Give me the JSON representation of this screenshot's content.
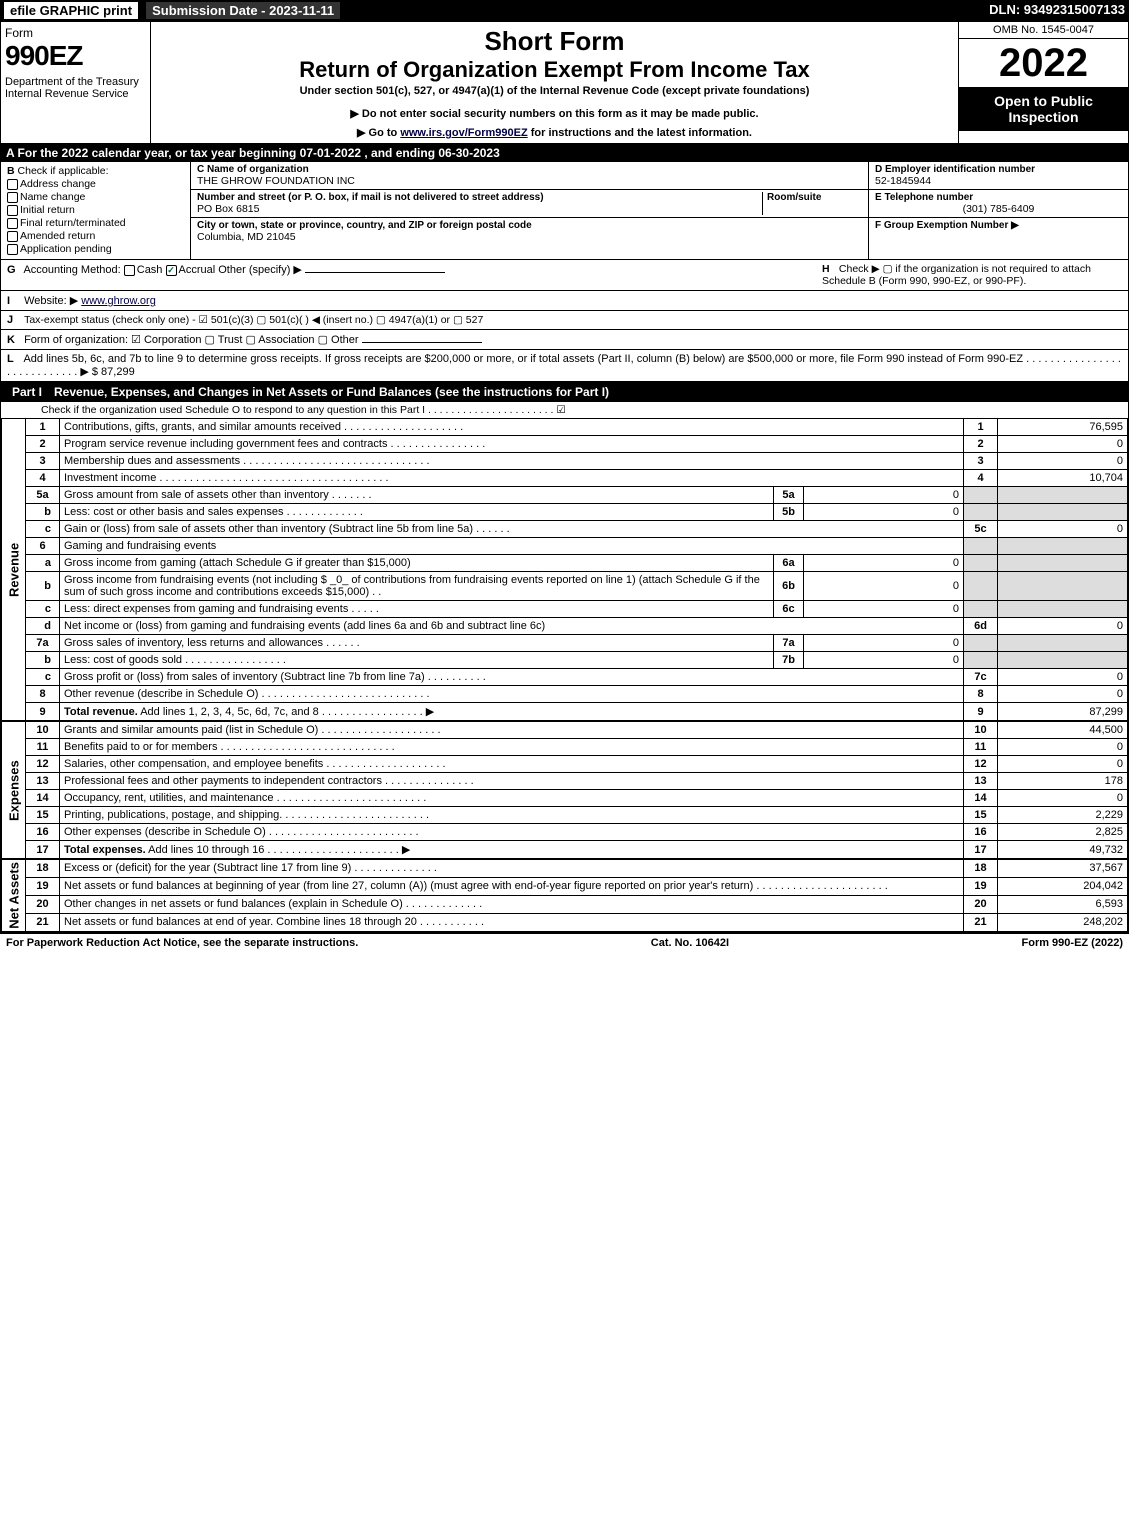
{
  "topbar": {
    "efile": "efile GRAPHIC print",
    "subdate": "Submission Date - 2023-11-11",
    "dln": "DLN: 93492315007133"
  },
  "header": {
    "form_word": "Form",
    "form_num": "990EZ",
    "dept": "Department of the Treasury\nInternal Revenue Service",
    "short": "Short Form",
    "title": "Return of Organization Exempt From Income Tax",
    "sub": "Under section 501(c), 527, or 4947(a)(1) of the Internal Revenue Code (except private foundations)",
    "note": "▶ Do not enter social security numbers on this form as it may be made public.",
    "note2": "▶ Go to www.irs.gov/Form990EZ for instructions and the latest information.",
    "omb": "OMB No. 1545-0047",
    "year": "2022",
    "open": "Open to Public Inspection"
  },
  "rowA": "A  For the 2022 calendar year, or tax year beginning 07-01-2022 , and ending 06-30-2023",
  "colB": {
    "hd_letter": "B",
    "hd": "Check if applicable:",
    "items": [
      "Address change",
      "Name change",
      "Initial return",
      "Final return/terminated",
      "Amended return",
      "Application pending"
    ]
  },
  "colC": {
    "name_lbl": "C Name of organization",
    "name": "THE GHROW FOUNDATION INC",
    "street_lbl": "Number and street (or P. O. box, if mail is not delivered to street address)",
    "room_lbl": "Room/suite",
    "street": "PO Box 6815",
    "city_lbl": "City or town, state or province, country, and ZIP or foreign postal code",
    "city": "Columbia, MD  21045"
  },
  "colDE": {
    "d_lbl": "D Employer identification number",
    "d_val": "52-1845944",
    "e_lbl": "E Telephone number",
    "e_val": "(301) 785-6409",
    "f_lbl": "F Group Exemption Number  ▶"
  },
  "lineG": {
    "ltr": "G",
    "text": "Accounting Method:",
    "cash": "Cash",
    "accrual": "Accrual",
    "other": "Other (specify) ▶"
  },
  "lineH": {
    "ltr": "H",
    "text": "Check ▶ ▢ if the organization is not required to attach Schedule B (Form 990, 990-EZ, or 990-PF)."
  },
  "lineI": {
    "ltr": "I",
    "text": "Website: ▶",
    "url": "www.ghrow.org"
  },
  "lineJ": {
    "ltr": "J",
    "text": "Tax-exempt status (check only one) - ☑ 501(c)(3) ▢ 501(c)(  ) ◀ (insert no.) ▢ 4947(a)(1) or ▢ 527"
  },
  "lineK": {
    "ltr": "K",
    "text": "Form of organization: ☑ Corporation  ▢ Trust  ▢ Association  ▢ Other"
  },
  "lineL": {
    "ltr": "L",
    "text": "Add lines 5b, 6c, and 7b to line 9 to determine gross receipts. If gross receipts are $200,000 or more, or if total assets (Part II, column (B) below) are $500,000 or more, file Form 990 instead of Form 990-EZ . . . . . . . . . . . . . . . . . . . . . . . . . . . . ▶ $ 87,299"
  },
  "part1": {
    "label": "Part I",
    "title": "Revenue, Expenses, and Changes in Net Assets or Fund Balances (see the instructions for Part I)",
    "sub": "Check if the organization used Schedule O to respond to any question in this Part I . . . . . . . . . . . . . . . . . . . . . . ☑"
  },
  "sections": {
    "revenue": "Revenue",
    "expenses": "Expenses",
    "netassets": "Net Assets"
  },
  "rows": [
    {
      "n": "1",
      "d": "Contributions, gifts, grants, and similar amounts received . . . . . . . . . . . . . . . . . . . .",
      "b": "1",
      "a": "76,595"
    },
    {
      "n": "2",
      "d": "Program service revenue including government fees and contracts . . . . . . . . . . . . . . . .",
      "b": "2",
      "a": "0"
    },
    {
      "n": "3",
      "d": "Membership dues and assessments . . . . . . . . . . . . . . . . . . . . . . . . . . . . . . .",
      "b": "3",
      "a": "0"
    },
    {
      "n": "4",
      "d": "Investment income . . . . . . . . . . . . . . . . . . . . . . . . . . . . . . . . . . . . . .",
      "b": "4",
      "a": "10,704"
    },
    {
      "n": "5a",
      "d": "Gross amount from sale of assets other than inventory . . . . . . .",
      "mn": "5a",
      "ma": "0",
      "shade": true
    },
    {
      "n": "b",
      "d": "Less: cost or other basis and sales expenses . . . . . . . . . . . . .",
      "mn": "5b",
      "ma": "0",
      "shade": true
    },
    {
      "n": "c",
      "d": "Gain or (loss) from sale of assets other than inventory (Subtract line 5b from line 5a) . . . . . .",
      "b": "5c",
      "a": "0"
    },
    {
      "n": "6",
      "d": "Gaming and fundraising events",
      "shade": true,
      "noamt": true
    },
    {
      "n": "a",
      "d": "Gross income from gaming (attach Schedule G if greater than $15,000)",
      "mn": "6a",
      "ma": "0",
      "shade": true
    },
    {
      "n": "b",
      "d": "Gross income from fundraising events (not including $ _0_ of contributions from fundraising events reported on line 1) (attach Schedule G if the sum of such gross income and contributions exceeds $15,000) . .",
      "mn": "6b",
      "ma": "0",
      "shade": true
    },
    {
      "n": "c",
      "d": "Less: direct expenses from gaming and fundraising events . . . . .",
      "mn": "6c",
      "ma": "0",
      "shade": true
    },
    {
      "n": "d",
      "d": "Net income or (loss) from gaming and fundraising events (add lines 6a and 6b and subtract line 6c)",
      "b": "6d",
      "a": "0"
    },
    {
      "n": "7a",
      "d": "Gross sales of inventory, less returns and allowances . . . . . .",
      "mn": "7a",
      "ma": "0",
      "shade": true
    },
    {
      "n": "b",
      "d": "Less: cost of goods sold . . . . . . . . . . . . . . . . .",
      "mn": "7b",
      "ma": "0",
      "shade": true
    },
    {
      "n": "c",
      "d": "Gross profit or (loss) from sales of inventory (Subtract line 7b from line 7a) . . . . . . . . . .",
      "b": "7c",
      "a": "0"
    },
    {
      "n": "8",
      "d": "Other revenue (describe in Schedule O) . . . . . . . . . . . . . . . . . . . . . . . . . . . .",
      "b": "8",
      "a": "0"
    },
    {
      "n": "9",
      "d": "Total revenue. Add lines 1, 2, 3, 4, 5c, 6d, 7c, and 8 . . . . . . . . . . . . . . . . . ▶",
      "b": "9",
      "a": "87,299",
      "bold": true
    }
  ],
  "exp_rows": [
    {
      "n": "10",
      "d": "Grants and similar amounts paid (list in Schedule O) . . . . . . . . . . . . . . . . . . . .",
      "b": "10",
      "a": "44,500"
    },
    {
      "n": "11",
      "d": "Benefits paid to or for members . . . . . . . . . . . . . . . . . . . . . . . . . . . . .",
      "b": "11",
      "a": "0"
    },
    {
      "n": "12",
      "d": "Salaries, other compensation, and employee benefits . . . . . . . . . . . . . . . . . . . .",
      "b": "12",
      "a": "0"
    },
    {
      "n": "13",
      "d": "Professional fees and other payments to independent contractors . . . . . . . . . . . . . . .",
      "b": "13",
      "a": "178"
    },
    {
      "n": "14",
      "d": "Occupancy, rent, utilities, and maintenance . . . . . . . . . . . . . . . . . . . . . . . . .",
      "b": "14",
      "a": "0"
    },
    {
      "n": "15",
      "d": "Printing, publications, postage, and shipping. . . . . . . . . . . . . . . . . . . . . . . . .",
      "b": "15",
      "a": "2,229"
    },
    {
      "n": "16",
      "d": "Other expenses (describe in Schedule O) . . . . . . . . . . . . . . . . . . . . . . . . .",
      "b": "16",
      "a": "2,825"
    },
    {
      "n": "17",
      "d": "Total expenses. Add lines 10 through 16 . . . . . . . . . . . . . . . . . . . . . . ▶",
      "b": "17",
      "a": "49,732",
      "bold": true
    }
  ],
  "net_rows": [
    {
      "n": "18",
      "d": "Excess or (deficit) for the year (Subtract line 17 from line 9) . . . . . . . . . . . . . .",
      "b": "18",
      "a": "37,567"
    },
    {
      "n": "19",
      "d": "Net assets or fund balances at beginning of year (from line 27, column (A)) (must agree with end-of-year figure reported on prior year's return) . . . . . . . . . . . . . . . . . . . . . .",
      "b": "19",
      "a": "204,042"
    },
    {
      "n": "20",
      "d": "Other changes in net assets or fund balances (explain in Schedule O) . . . . . . . . . . . . .",
      "b": "20",
      "a": "6,593"
    },
    {
      "n": "21",
      "d": "Net assets or fund balances at end of year. Combine lines 18 through 20 . . . . . . . . . . .",
      "b": "21",
      "a": "248,202"
    }
  ],
  "footer": {
    "left": "For Paperwork Reduction Act Notice, see the separate instructions.",
    "mid": "Cat. No. 10642I",
    "right": "Form 990-EZ (2022)"
  }
}
